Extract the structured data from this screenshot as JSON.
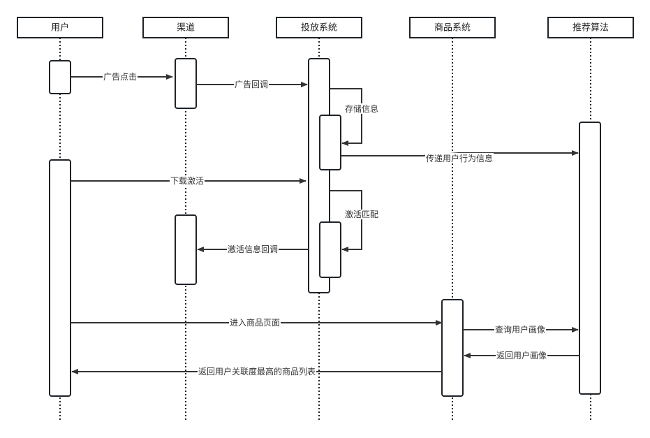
{
  "participants": [
    {
      "id": "user",
      "label": "用户"
    },
    {
      "id": "channel",
      "label": "渠道"
    },
    {
      "id": "delivery",
      "label": "投放系统"
    },
    {
      "id": "product",
      "label": "商品系统"
    },
    {
      "id": "recommend",
      "label": "推荐算法"
    }
  ],
  "messages": [
    {
      "from": "user",
      "to": "channel",
      "label": "广告点击"
    },
    {
      "from": "channel",
      "to": "delivery",
      "label": "广告回调"
    },
    {
      "from": "delivery",
      "to": "delivery",
      "label": "存储信息"
    },
    {
      "from": "delivery",
      "to": "recommend",
      "label": "传递用户行为信息"
    },
    {
      "from": "user",
      "to": "delivery",
      "label": "下载激活"
    },
    {
      "from": "delivery",
      "to": "delivery",
      "label": "激活匹配"
    },
    {
      "from": "delivery",
      "to": "channel",
      "label": "激活信息回调"
    },
    {
      "from": "user",
      "to": "product",
      "label": "进入商品页面"
    },
    {
      "from": "product",
      "to": "recommend",
      "label": "查询用户画像"
    },
    {
      "from": "recommend",
      "to": "product",
      "label": "返回用户画像"
    },
    {
      "from": "product",
      "to": "user",
      "label": "返回用户关联度最高的商品列表"
    }
  ]
}
